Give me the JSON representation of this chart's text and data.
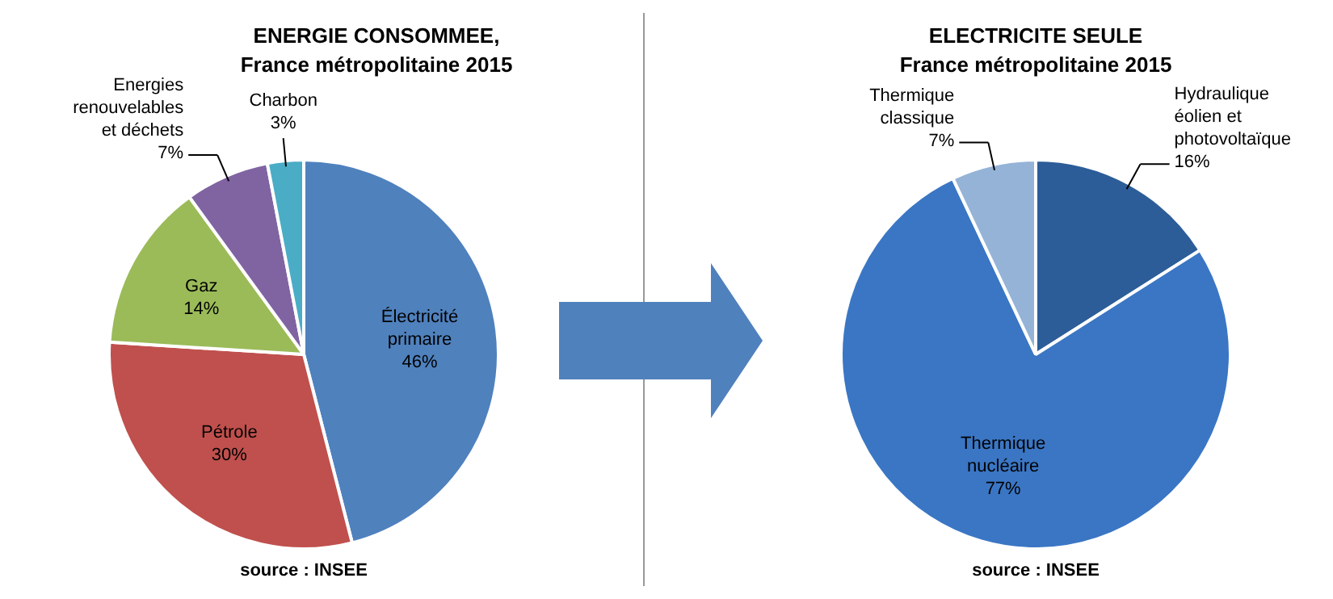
{
  "chart_data": [
    {
      "type": "pie",
      "title": "ENERGIE CONSOMMEE,",
      "subtitle": "France métropolitaine 2015",
      "categories": [
        "Électricité primaire",
        "Pétrole",
        "Gaz",
        "Energies renouvelables et déchets",
        "Charbon"
      ],
      "values": [
        46,
        30,
        14,
        7,
        3
      ],
      "value_labels": [
        "46%",
        "30%",
        "14%",
        "7%",
        "3%"
      ],
      "colors": [
        "#4f81bd",
        "#c0504d",
        "#9bbb59",
        "#8064a2",
        "#4bacc6"
      ],
      "annotations": [
        "source : INSEE"
      ]
    },
    {
      "type": "pie",
      "title": "ELECTRICITE SEULE",
      "subtitle": "France métropolitaine 2015",
      "categories": [
        "Hydraulique éolien et photovoltaïque",
        "Thermique nucléaire",
        "Thermique classique"
      ],
      "values": [
        16,
        77,
        7
      ],
      "value_labels": [
        "16%",
        "77%",
        "7%"
      ],
      "colors": [
        "#2c5d98",
        "#3a76c4",
        "#95b3d7"
      ],
      "annotations": [
        "source : INSEE"
      ]
    }
  ]
}
